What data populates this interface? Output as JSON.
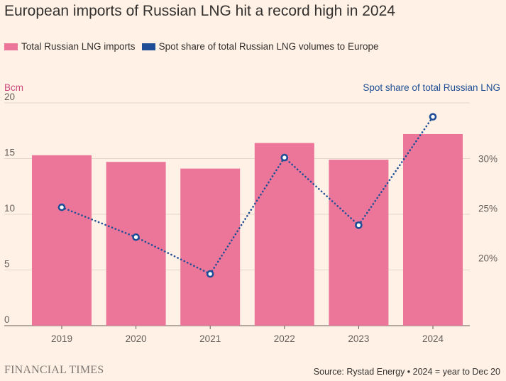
{
  "title": "European imports of Russian LNG hit a record high in 2024",
  "legend": {
    "bars_label": "Total Russian LNG imports",
    "line_label": "Spot share of total Russian LNG volumes to Europe"
  },
  "colors": {
    "bar": "#EB7699",
    "line": "#1F4E96",
    "left_axis_label": "#CC4C7E",
    "background": "#FFF1E5"
  },
  "chart_data": {
    "type": "bar",
    "title": "European imports of Russian LNG hit a record high in 2024",
    "categories": [
      "2019",
      "2020",
      "2021",
      "2022",
      "2023",
      "2024"
    ],
    "series": [
      {
        "name": "Total Russian LNG imports",
        "axis": "left",
        "type": "bar",
        "unit": "Bcm",
        "values": [
          15.3,
          14.7,
          14.1,
          16.4,
          14.9,
          17.2
        ]
      },
      {
        "name": "Spot share of total Russian LNG volumes to Europe",
        "axis": "right",
        "type": "line",
        "style": "dotted",
        "unit": "%",
        "values": [
          25.1,
          22.1,
          18.4,
          30.1,
          23.3,
          34.2
        ]
      }
    ],
    "ylabel": "Bcm",
    "ylim": [
      0,
      20
    ],
    "yticks": [
      "0",
      "5",
      "10",
      "15",
      "20"
    ],
    "y2label": "Spot share of total Russian LNG",
    "y2lim": [
      13.2,
      35.6
    ],
    "y2ticks": [
      {
        "value": 20,
        "label": "20%"
      },
      {
        "value": 25,
        "label": "25%"
      },
      {
        "value": 30,
        "label": "30%"
      }
    ],
    "grid": true
  },
  "footer": {
    "brand": "FINANCIAL TIMES",
    "source": "Source: Rystad Energy • 2024 = year to Dec 20"
  }
}
